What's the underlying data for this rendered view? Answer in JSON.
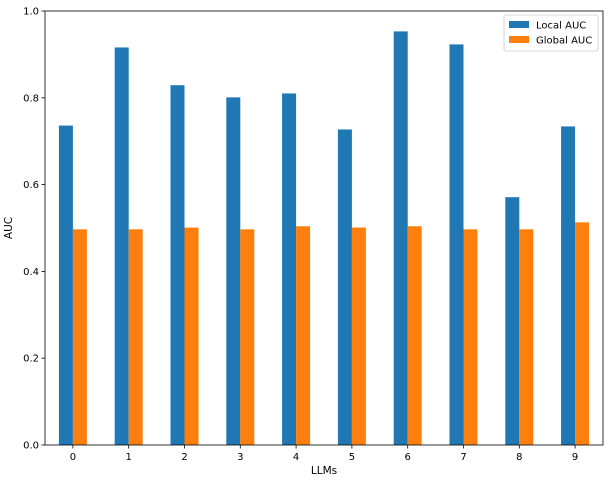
{
  "chart_data": {
    "type": "bar",
    "categories": [
      "0",
      "1",
      "2",
      "3",
      "4",
      "5",
      "6",
      "7",
      "8",
      "9"
    ],
    "series": [
      {
        "name": "Local AUC",
        "color": "#1f77b4",
        "values": [
          0.736,
          0.916,
          0.829,
          0.801,
          0.81,
          0.727,
          0.953,
          0.923,
          0.571,
          0.734
        ]
      },
      {
        "name": "Global AUC",
        "color": "#ff7f0e",
        "values": [
          0.497,
          0.497,
          0.501,
          0.497,
          0.504,
          0.501,
          0.504,
          0.497,
          0.497,
          0.513
        ]
      }
    ],
    "xlabel": "LLMs",
    "ylabel": "AUC",
    "ylim": [
      0.0,
      1.0
    ],
    "yticks": [
      "0.0",
      "0.2",
      "0.4",
      "0.6",
      "0.8",
      "1.0"
    ],
    "grid": false,
    "legend_position": "top-right"
  }
}
